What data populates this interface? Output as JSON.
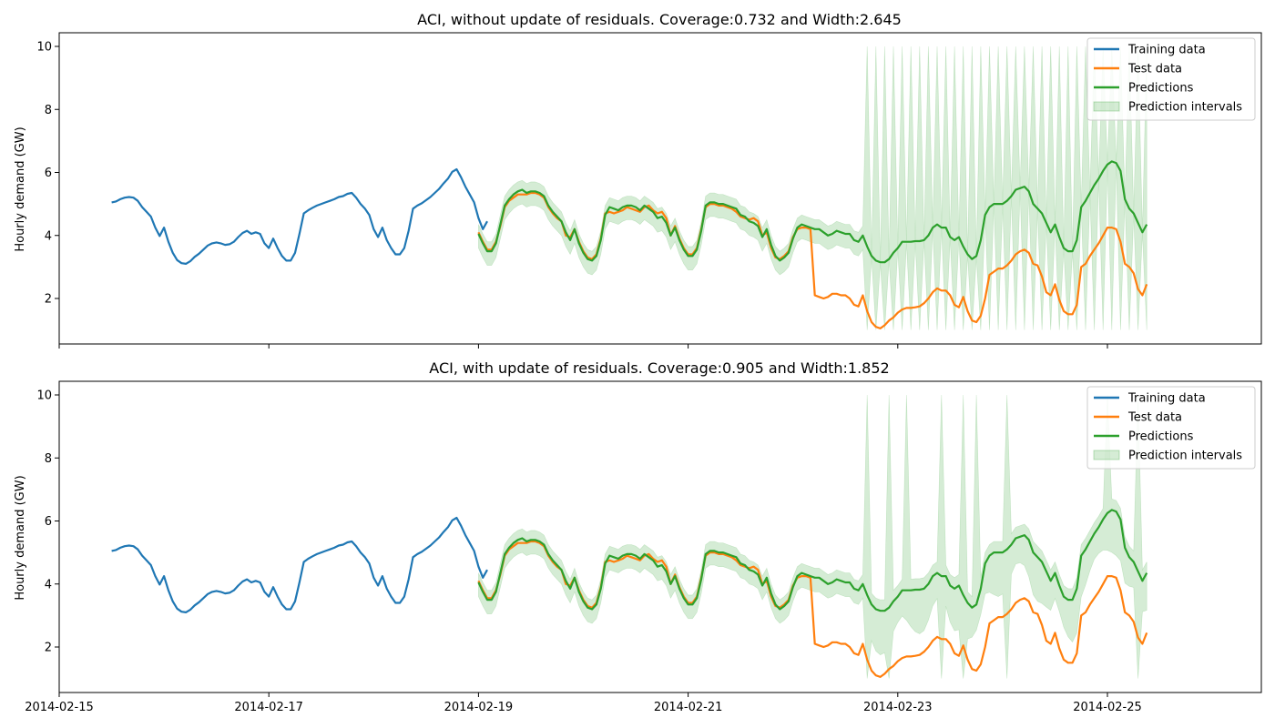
{
  "chart_data": [
    {
      "type": "line",
      "title": "ACI, without update of residuals. Coverage:0.732 and Width:2.645",
      "xlabel": "",
      "ylabel": "Hourly demand (GW)",
      "xlim": [
        "2014-02-15",
        "2014-02-26"
      ],
      "ylim": [
        0.5,
        10.5
      ],
      "yticks": [
        2,
        4,
        6,
        8,
        10
      ],
      "xticks": [
        "2014-02-15",
        "2014-02-17",
        "2014-02-19",
        "2014-02-21",
        "2014-02-23",
        "2014-02-25"
      ],
      "xtick_labels_shown": false,
      "grid": false,
      "legend": "top-right",
      "legend_entries": [
        "Training data",
        "Test data",
        "Predictions",
        "Prediction intervals"
      ],
      "colors": {
        "training": "#1f77b4",
        "test": "#ff7f0e",
        "predictions": "#2ca02c",
        "interval": "#2ca02c"
      },
      "series": [
        {
          "name": "Training data",
          "x_start": "2014-02-15 12:00",
          "step_hours": 1,
          "values": [
            5.05,
            5.08,
            5.15,
            5.2,
            5.22,
            5.2,
            5.1,
            4.9,
            4.75,
            4.6,
            4.25,
            3.98,
            4.25,
            3.8,
            3.45,
            3.22,
            3.12,
            3.1,
            3.18,
            3.32,
            3.42,
            3.55,
            3.68,
            3.75,
            3.78,
            3.75,
            3.7,
            3.72,
            3.8,
            3.95,
            4.08,
            4.15,
            4.05,
            4.1,
            4.05,
            3.75,
            3.6,
            3.9,
            3.6,
            3.35,
            3.2,
            3.2,
            3.45,
            4.05,
            4.7,
            4.8,
            4.88,
            4.95,
            5.0,
            5.05,
            5.1,
            5.15,
            5.22,
            5.25,
            5.32,
            5.35,
            5.2,
            5.0,
            4.85,
            4.65,
            4.2,
            3.95,
            4.25,
            3.85,
            3.6,
            3.4,
            3.4,
            3.6,
            4.15,
            4.85,
            4.95,
            5.02,
            5.12,
            5.22,
            5.35,
            5.48,
            5.65,
            5.8,
            6.02,
            6.1,
            5.85,
            5.55,
            5.3,
            5.05,
            4.55,
            4.2,
            4.45
          ]
        },
        {
          "name": "Test data",
          "x_start": "2014-02-19 00:00",
          "step_hours": 1,
          "values": [
            4.1,
            3.8,
            3.55,
            3.55,
            3.8,
            4.3,
            4.9,
            5.1,
            5.2,
            5.3,
            5.3,
            5.3,
            5.35,
            5.35,
            5.3,
            5.2,
            4.9,
            4.7,
            4.55,
            4.45,
            4.0,
            3.95,
            4.2,
            3.8,
            3.5,
            3.3,
            3.25,
            3.4,
            3.9,
            4.7,
            4.75,
            4.7,
            4.75,
            4.8,
            4.9,
            4.85,
            4.8,
            4.75,
            4.9,
            4.95,
            4.8,
            4.7,
            4.75,
            4.55,
            4.0,
            4.3,
            3.9,
            3.6,
            3.4,
            3.4,
            3.6,
            4.2,
            4.9,
            5.0,
            5.0,
            4.95,
            4.95,
            4.9,
            4.85,
            4.75,
            4.6,
            4.55,
            4.5,
            4.55,
            4.45,
            4.0,
            4.1,
            3.6,
            3.3,
            3.25,
            3.35,
            3.5,
            3.95,
            4.2,
            4.25,
            4.25,
            4.2,
            2.1,
            2.05,
            2.0,
            2.05,
            2.15,
            2.15,
            2.1,
            2.1,
            2.0,
            1.8,
            1.75,
            2.1,
            1.6,
            1.25,
            1.1,
            1.05,
            1.15,
            1.3,
            1.4,
            1.55,
            1.65,
            1.7,
            1.7,
            1.72,
            1.75,
            1.85,
            2.0,
            2.2,
            2.32,
            2.25,
            2.25,
            2.1,
            1.8,
            1.72,
            2.05,
            1.6,
            1.3,
            1.25,
            1.45,
            2.0,
            2.75,
            2.85,
            2.95,
            2.95,
            3.05,
            3.2,
            3.4,
            3.5,
            3.55,
            3.45,
            3.1,
            3.05,
            2.7,
            2.2,
            2.1,
            2.45,
            1.95,
            1.6,
            1.5,
            1.5,
            1.8,
            3.0,
            3.1,
            3.35,
            3.55,
            3.75,
            4.0,
            4.25,
            4.25,
            4.2,
            3.8,
            3.1,
            3.0,
            2.8,
            2.3,
            2.1,
            2.45
          ]
        },
        {
          "name": "Predictions",
          "x_start": "2014-02-19 00:00",
          "step_hours": 1,
          "values": [
            4.05,
            3.75,
            3.5,
            3.5,
            3.75,
            4.35,
            4.95,
            5.15,
            5.3,
            5.4,
            5.45,
            5.35,
            5.4,
            5.4,
            5.35,
            5.25,
            4.95,
            4.75,
            4.6,
            4.45,
            4.1,
            3.85,
            4.2,
            3.75,
            3.45,
            3.25,
            3.2,
            3.35,
            3.85,
            4.65,
            4.9,
            4.85,
            4.8,
            4.9,
            4.95,
            4.95,
            4.9,
            4.8,
            4.95,
            4.85,
            4.75,
            4.55,
            4.6,
            4.4,
            4.0,
            4.25,
            3.85,
            3.55,
            3.35,
            3.35,
            3.55,
            4.15,
            4.95,
            5.05,
            5.05,
            5.0,
            5.0,
            4.95,
            4.9,
            4.85,
            4.65,
            4.6,
            4.45,
            4.4,
            4.3,
            3.95,
            4.2,
            3.7,
            3.35,
            3.2,
            3.3,
            3.45,
            3.9,
            4.25,
            4.35,
            4.3,
            4.25,
            4.2,
            4.2,
            4.1,
            4.0,
            4.05,
            4.15,
            4.1,
            4.05,
            4.05,
            3.85,
            3.8,
            4.0,
            3.65,
            3.35,
            3.2,
            3.15,
            3.15,
            3.25,
            3.45,
            3.6,
            3.8,
            3.8,
            3.8,
            3.82,
            3.82,
            3.85,
            4.0,
            4.25,
            4.35,
            4.25,
            4.25,
            3.95,
            3.85,
            3.95,
            3.65,
            3.4,
            3.25,
            3.35,
            3.85,
            4.65,
            4.9,
            5.0,
            5.0,
            5.0,
            5.1,
            5.25,
            5.45,
            5.5,
            5.55,
            5.4,
            5.0,
            4.85,
            4.7,
            4.4,
            4.1,
            4.35,
            3.95,
            3.6,
            3.5,
            3.5,
            3.85,
            4.9,
            5.1,
            5.35,
            5.6,
            5.8,
            6.05,
            6.25,
            6.35,
            6.3,
            6.05,
            5.15,
            4.85,
            4.7,
            4.4,
            4.1,
            4.35
          ]
        },
        {
          "name": "Prediction intervals",
          "kind": "band",
          "note_lower": "Predictions minus 0.4 until 2014-02-22 16:00; afterwards alternating between about 1.0 and the prediction level",
          "note_upper": "Predictions plus 0.3 until 2014-02-22 16:00; afterwards alternating between 10.0 and the prediction level"
        }
      ]
    },
    {
      "type": "line",
      "title": "ACI, with update of residuals. Coverage:0.905 and Width:1.852",
      "xlabel": "",
      "ylabel": "Hourly demand (GW)",
      "xlim": [
        "2014-02-15",
        "2014-02-26"
      ],
      "ylim": [
        0.5,
        10.5
      ],
      "yticks": [
        2,
        4,
        6,
        8,
        10
      ],
      "xticks": [
        "2014-02-15",
        "2014-02-17",
        "2014-02-19",
        "2014-02-21",
        "2014-02-23",
        "2014-02-25"
      ],
      "xtick_labels_shown": true,
      "grid": false,
      "legend": "top-right",
      "legend_entries": [
        "Training data",
        "Test data",
        "Predictions",
        "Prediction intervals"
      ],
      "series": [
        {
          "name": "Training data",
          "same_as_panel": 0
        },
        {
          "name": "Test data",
          "same_as_panel": 0
        },
        {
          "name": "Predictions",
          "same_as_panel": 0
        },
        {
          "name": "Prediction intervals",
          "kind": "band",
          "spikes_to_10_at": [
            "2014-02-22 17:00",
            "2014-02-22 22:00",
            "2014-02-23 02:00",
            "2014-02-23 10:00",
            "2014-02-23 15:00",
            "2014-02-23 18:00",
            "2014-02-24 01:00",
            "2014-02-25 00:00",
            "2014-02-25 07:00",
            "2014-02-25 11:00",
            "2014-02-25 15:00",
            "2014-02-25 19:00",
            "2014-02-25 21:00"
          ],
          "lower_dips_to_1_at": [
            "2014-02-22 17:00",
            "2014-02-22 22:00",
            "2014-02-23 10:00",
            "2014-02-23 15:00",
            "2014-02-24 01:00",
            "2014-02-25 07:00",
            "2014-02-25 15:00",
            "2014-02-25 19:00"
          ]
        }
      ]
    }
  ],
  "xtick_labels": [
    "2014-02-15",
    "2014-02-17",
    "2014-02-19",
    "2014-02-21",
    "2014-02-23",
    "2014-02-25"
  ],
  "ytick_labels": [
    "2",
    "4",
    "6",
    "8",
    "10"
  ]
}
